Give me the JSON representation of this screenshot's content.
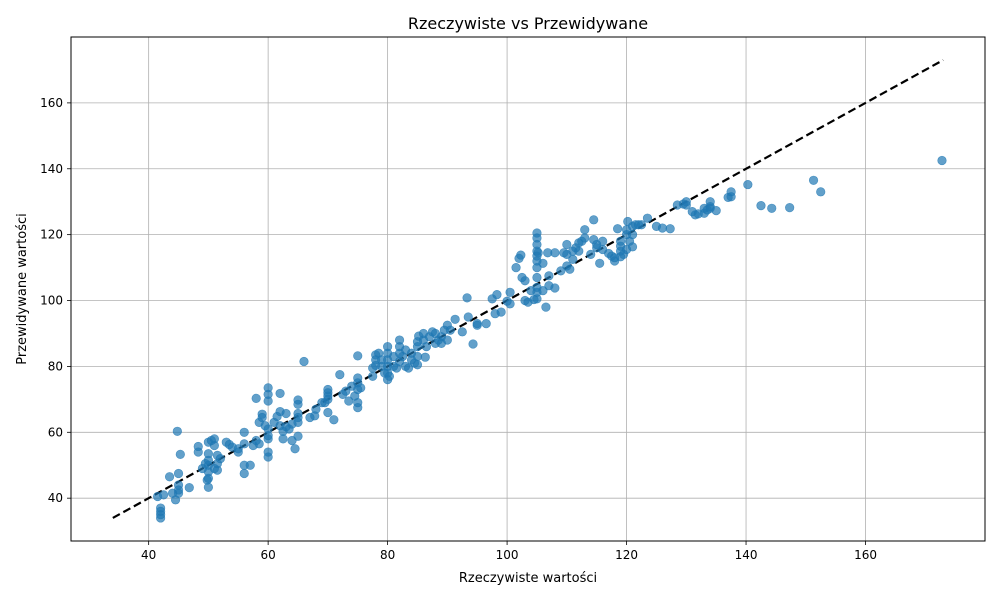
{
  "chart_data": {
    "type": "scatter",
    "title": "Rzeczywiste vs Przewidywane",
    "xlabel": "Rzeczywiste wartości",
    "ylabel": "Przewidywane wartości",
    "xlim": [
      27,
      180
    ],
    "ylim": [
      27,
      180
    ],
    "xticks": [
      40,
      60,
      80,
      100,
      120,
      140,
      160
    ],
    "yticks": [
      40,
      60,
      80,
      100,
      120,
      140,
      160
    ],
    "grid": true,
    "point_color": "#1f77b4",
    "point_alpha": 0.7,
    "reference_line": {
      "style": "dashed",
      "color": "#000000",
      "x": [
        34,
        173
      ],
      "y": [
        34,
        173
      ]
    },
    "points": [
      [
        42,
        34
      ],
      [
        42,
        35
      ],
      [
        42,
        36
      ],
      [
        42,
        37
      ],
      [
        41.5,
        40.5
      ],
      [
        42.5,
        41
      ],
      [
        43.5,
        46.5
      ],
      [
        44,
        41.5
      ],
      [
        44.5,
        39.5
      ],
      [
        45,
        41.5
      ],
      [
        45,
        42.5
      ],
      [
        45,
        44
      ],
      [
        45,
        47.5
      ],
      [
        45.3,
        53.3
      ],
      [
        44.8,
        60.3
      ],
      [
        46.8,
        43.2
      ],
      [
        48.3,
        54
      ],
      [
        48.3,
        55.7
      ],
      [
        49,
        49
      ],
      [
        49.5,
        50.5
      ],
      [
        49.8,
        45.5
      ],
      [
        50,
        43.3
      ],
      [
        50,
        46
      ],
      [
        50,
        48
      ],
      [
        50,
        50
      ],
      [
        50,
        51.5
      ],
      [
        50,
        53.5
      ],
      [
        50,
        57
      ],
      [
        50.5,
        57.5
      ],
      [
        51,
        56
      ],
      [
        51,
        58
      ],
      [
        51.5,
        53
      ],
      [
        51.5,
        50.5
      ],
      [
        52,
        52
      ],
      [
        51.5,
        48.5
      ],
      [
        51,
        49
      ],
      [
        53,
        57
      ],
      [
        53.5,
        56.3
      ],
      [
        54,
        55.5
      ],
      [
        55,
        55
      ],
      [
        55,
        54
      ],
      [
        56,
        56.5
      ],
      [
        56,
        60
      ],
      [
        56,
        50
      ],
      [
        56,
        47.5
      ],
      [
        57,
        50
      ],
      [
        57.5,
        56
      ],
      [
        58,
        57.5
      ],
      [
        58,
        70.3
      ],
      [
        58.5,
        56.5
      ],
      [
        58.5,
        63
      ],
      [
        59,
        65.5
      ],
      [
        59,
        64.5
      ],
      [
        59.5,
        62
      ],
      [
        60,
        71.5
      ],
      [
        60,
        73.5
      ],
      [
        60,
        69.5
      ],
      [
        60,
        61
      ],
      [
        60,
        59
      ],
      [
        60,
        58
      ],
      [
        60,
        54
      ],
      [
        60,
        52.5
      ],
      [
        61,
        63
      ],
      [
        61.5,
        64.8
      ],
      [
        62,
        71.8
      ],
      [
        62,
        66.3
      ],
      [
        62,
        62
      ],
      [
        62.5,
        58
      ],
      [
        62.5,
        60.3
      ],
      [
        63,
        61.7
      ],
      [
        63,
        65.7
      ],
      [
        63.5,
        61
      ],
      [
        64,
        57.5
      ],
      [
        64,
        62.5
      ],
      [
        64.5,
        55
      ],
      [
        65,
        58.8
      ],
      [
        65,
        63
      ],
      [
        65,
        64.5
      ],
      [
        65,
        65.7
      ],
      [
        65,
        68.5
      ],
      [
        65,
        69.8
      ],
      [
        66,
        81.5
      ],
      [
        67,
        64.5
      ],
      [
        67.8,
        65
      ],
      [
        68,
        67
      ],
      [
        69,
        69
      ],
      [
        69.5,
        69
      ],
      [
        70,
        71
      ],
      [
        70,
        72
      ],
      [
        70,
        73
      ],
      [
        70,
        70
      ],
      [
        70,
        66
      ],
      [
        71,
        63.8
      ],
      [
        72,
        77.5
      ],
      [
        72.5,
        71.5
      ],
      [
        73,
        72.5
      ],
      [
        73.5,
        69.5
      ],
      [
        74,
        74
      ],
      [
        74.5,
        71
      ],
      [
        75,
        76.5
      ],
      [
        75,
        75
      ],
      [
        75,
        73
      ],
      [
        75,
        69
      ],
      [
        75,
        67.5
      ],
      [
        75,
        83.2
      ],
      [
        75.5,
        73.5
      ],
      [
        77.5,
        79.5
      ],
      [
        77.5,
        77
      ],
      [
        78,
        80.3
      ],
      [
        78,
        82
      ],
      [
        78,
        83.5
      ],
      [
        78.5,
        84
      ],
      [
        79,
        82
      ],
      [
        79,
        80
      ],
      [
        79.5,
        78
      ],
      [
        80,
        76
      ],
      [
        80,
        78
      ],
      [
        80,
        80
      ],
      [
        80,
        82
      ],
      [
        80,
        84
      ],
      [
        80,
        86
      ],
      [
        80.3,
        77
      ],
      [
        81,
        80
      ],
      [
        81,
        83
      ],
      [
        81.5,
        79.5
      ],
      [
        82,
        81.5
      ],
      [
        82,
        84
      ],
      [
        82,
        86
      ],
      [
        82,
        88
      ],
      [
        82.5,
        83
      ],
      [
        83,
        85
      ],
      [
        83,
        80
      ],
      [
        83.5,
        79.5
      ],
      [
        84,
        84
      ],
      [
        84,
        82
      ],
      [
        84.5,
        81
      ],
      [
        85,
        80.5
      ],
      [
        85,
        83
      ],
      [
        85,
        86
      ],
      [
        85,
        87.5
      ],
      [
        85.2,
        89.2
      ],
      [
        86,
        88
      ],
      [
        86,
        90
      ],
      [
        86.5,
        86
      ],
      [
        86.3,
        82.8
      ],
      [
        87,
        89
      ],
      [
        87.5,
        90.5
      ],
      [
        88,
        87
      ],
      [
        88,
        90
      ],
      [
        88.5,
        88
      ],
      [
        89,
        89
      ],
      [
        89.5,
        91
      ],
      [
        89,
        87
      ],
      [
        90,
        92.5
      ],
      [
        90,
        88
      ],
      [
        90.5,
        91
      ],
      [
        91.3,
        94.3
      ],
      [
        92.5,
        90.5
      ],
      [
        93.3,
        100.8
      ],
      [
        93.5,
        95
      ],
      [
        94.3,
        86.8
      ],
      [
        95,
        93
      ],
      [
        95,
        92.5
      ],
      [
        96.5,
        93
      ],
      [
        97.5,
        100.5
      ],
      [
        98,
        96
      ],
      [
        98.3,
        101.8
      ],
      [
        99,
        96.5
      ],
      [
        100,
        99.8
      ],
      [
        100.5,
        102.5
      ],
      [
        100.5,
        99
      ],
      [
        101.5,
        110
      ],
      [
        102,
        112.8
      ],
      [
        102.3,
        113.8
      ],
      [
        102.5,
        107
      ],
      [
        103,
        106
      ],
      [
        103,
        100
      ],
      [
        103.5,
        99.5
      ],
      [
        104,
        103
      ],
      [
        104.5,
        100.3
      ],
      [
        105,
        100.5
      ],
      [
        105,
        102.5
      ],
      [
        105,
        104
      ],
      [
        105,
        107
      ],
      [
        105,
        110
      ],
      [
        105,
        112
      ],
      [
        105,
        113.5
      ],
      [
        105,
        115
      ],
      [
        105,
        117
      ],
      [
        105,
        119
      ],
      [
        105,
        120.5
      ],
      [
        105.2,
        114.5
      ],
      [
        106,
        103
      ],
      [
        106,
        111.3
      ],
      [
        106.5,
        98
      ],
      [
        106.8,
        114.5
      ],
      [
        107,
        104.5
      ],
      [
        107,
        107.5
      ],
      [
        108,
        114.5
      ],
      [
        108,
        103.8
      ],
      [
        109,
        109
      ],
      [
        109.5,
        114.5
      ],
      [
        110,
        114
      ],
      [
        110,
        117
      ],
      [
        110,
        110.5
      ],
      [
        110.5,
        109.5
      ],
      [
        111,
        115
      ],
      [
        111,
        112.5
      ],
      [
        111.5,
        116
      ],
      [
        112,
        117.5
      ],
      [
        112,
        115
      ],
      [
        112.5,
        118
      ],
      [
        113,
        119
      ],
      [
        113,
        121.5
      ],
      [
        114,
        114
      ],
      [
        114.5,
        118.5
      ],
      [
        114.5,
        124.5
      ],
      [
        115,
        116
      ],
      [
        115,
        117
      ],
      [
        115.5,
        111.3
      ],
      [
        116,
        118
      ],
      [
        116,
        115.5
      ],
      [
        117,
        114.3
      ],
      [
        117.5,
        113.5
      ],
      [
        118,
        112
      ],
      [
        118,
        113
      ],
      [
        118.5,
        121.8
      ],
      [
        119,
        115
      ],
      [
        119,
        116.5
      ],
      [
        119,
        118
      ],
      [
        119,
        113.3
      ],
      [
        119.5,
        114
      ],
      [
        120,
        115.5
      ],
      [
        120,
        120
      ],
      [
        120,
        121.5
      ],
      [
        120.2,
        124
      ],
      [
        120.5,
        118
      ],
      [
        121,
        122.5
      ],
      [
        121,
        116.3
      ],
      [
        121,
        120
      ],
      [
        121.5,
        123
      ],
      [
        122,
        123
      ],
      [
        122.5,
        123
      ],
      [
        123.5,
        125
      ],
      [
        125,
        122.5
      ],
      [
        126,
        122
      ],
      [
        127.3,
        121.8
      ],
      [
        128.5,
        129
      ],
      [
        129.5,
        129.3
      ],
      [
        130,
        130
      ],
      [
        130,
        129
      ],
      [
        131,
        127
      ],
      [
        131.5,
        126
      ],
      [
        132,
        126.3
      ],
      [
        133,
        126.5
      ],
      [
        133,
        128
      ],
      [
        133.5,
        127.5
      ],
      [
        134,
        128.5
      ],
      [
        134,
        130
      ],
      [
        134,
        128
      ],
      [
        135,
        127.3
      ],
      [
        137,
        131.3
      ],
      [
        137.5,
        133
      ],
      [
        137.5,
        131.5
      ],
      [
        140.3,
        135.2
      ],
      [
        142.5,
        128.8
      ],
      [
        144.3,
        128
      ],
      [
        147.3,
        128.2
      ],
      [
        151.3,
        136.5
      ],
      [
        152.5,
        133
      ],
      [
        172.8,
        142.5
      ]
    ]
  }
}
